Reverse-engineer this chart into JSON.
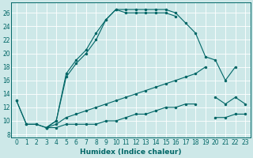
{
  "x": [
    0,
    1,
    2,
    3,
    4,
    5,
    6,
    7,
    8,
    9,
    10,
    11,
    12,
    13,
    14,
    15,
    16,
    17,
    18,
    19,
    20,
    21,
    22,
    23
  ],
  "line_main": [
    13,
    9.5,
    9.5,
    9,
    10,
    17,
    19,
    20.5,
    23,
    25,
    26.5,
    26.5,
    26.5,
    26.5,
    26.5,
    26.5,
    26,
    24.5,
    23,
    19.5,
    19,
    16,
    18,
    null
  ],
  "line_second": [
    13,
    9.5,
    9.5,
    9,
    10,
    16.5,
    18.5,
    20,
    22,
    25,
    26.5,
    26,
    26,
    26,
    26,
    26,
    25.5,
    null,
    null,
    null,
    null,
    null,
    null,
    null
  ],
  "line_diag_upper": [
    null,
    null,
    null,
    9,
    9.5,
    10.5,
    11,
    11.5,
    12,
    12.5,
    13,
    13.5,
    14,
    14.5,
    15,
    15.5,
    16,
    16.5,
    17,
    18,
    null,
    null,
    null,
    null
  ],
  "line_diag_lower": [
    null,
    null,
    null,
    9,
    9,
    9.5,
    9.5,
    9.5,
    9.5,
    10,
    10,
    10.5,
    11,
    11,
    11.5,
    12,
    12,
    12.5,
    12.5,
    null,
    null,
    null,
    null,
    null
  ],
  "line_right_upper": [
    null,
    null,
    null,
    null,
    null,
    null,
    null,
    null,
    null,
    null,
    null,
    null,
    null,
    null,
    null,
    null,
    null,
    null,
    null,
    null,
    13.5,
    12.5,
    13.5,
    12.5
  ],
  "line_right_lower": [
    null,
    null,
    null,
    null,
    null,
    null,
    null,
    null,
    null,
    null,
    null,
    null,
    null,
    null,
    null,
    null,
    null,
    null,
    null,
    null,
    10.5,
    10.5,
    11,
    11
  ],
  "bg_color": "#cde8e8",
  "line_color": "#006666",
  "grid_color": "#ffffff",
  "yticks": [
    8,
    10,
    12,
    14,
    16,
    18,
    20,
    22,
    24,
    26
  ],
  "ylim": [
    7.5,
    27.5
  ],
  "xlim": [
    -0.5,
    23.5
  ],
  "xlabel": "Humidex (Indice chaleur)",
  "marker": ".",
  "markersize": 2.5,
  "lw": 0.8,
  "tick_fontsize": 5.5,
  "xlabel_fontsize": 6.5
}
